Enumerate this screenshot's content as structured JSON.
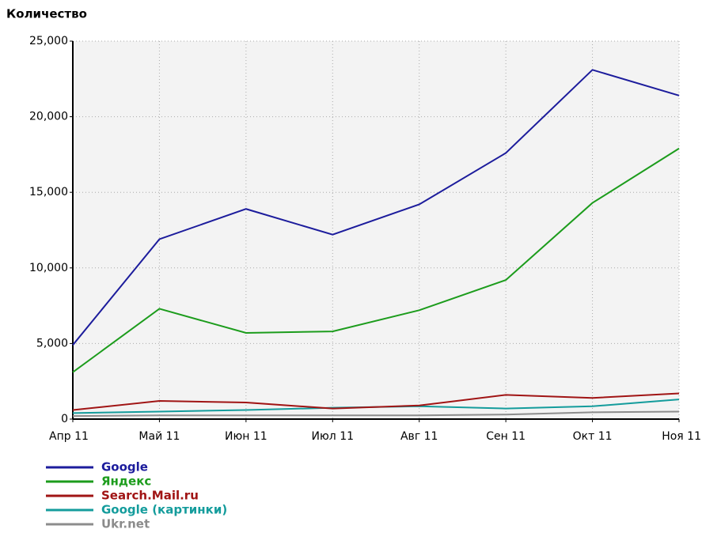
{
  "chart_data": {
    "type": "line",
    "title": "Количество",
    "categories": [
      "Апр 11",
      "Май 11",
      "Июн 11",
      "Июл 11",
      "Авг 11",
      "Сен 11",
      "Окт 11",
      "Ноя 11"
    ],
    "series": [
      {
        "name": "Google",
        "color": "#1c1c9c",
        "values": [
          4900,
          11900,
          13900,
          12200,
          14200,
          17600,
          23100,
          21400
        ]
      },
      {
        "name": "Яндекс",
        "color": "#1c9c1c",
        "values": [
          3100,
          7300,
          5700,
          5800,
          7200,
          9200,
          14300,
          17900
        ]
      },
      {
        "name": "Search.Mail.ru",
        "color": "#a01414",
        "values": [
          600,
          1200,
          1100,
          700,
          900,
          1600,
          1400,
          1700
        ]
      },
      {
        "name": "Google (картинки)",
        "color": "#149c9c",
        "values": [
          400,
          500,
          600,
          750,
          850,
          700,
          850,
          1300
        ]
      },
      {
        "name": "Ukr.net",
        "color": "#8c8c8c",
        "values": [
          200,
          250,
          250,
          250,
          250,
          300,
          450,
          500
        ]
      }
    ],
    "ylim": [
      0,
      25000
    ],
    "yticks": [
      0,
      {
        "value": 5000,
        "label": "5,000"
      },
      {
        "value": 10000,
        "label": "10,000"
      },
      {
        "value": 15000,
        "label": "15,000"
      },
      {
        "value": 20000,
        "label": "20,000"
      },
      {
        "value": 25000,
        "label": "25,000"
      }
    ],
    "grid": true
  }
}
